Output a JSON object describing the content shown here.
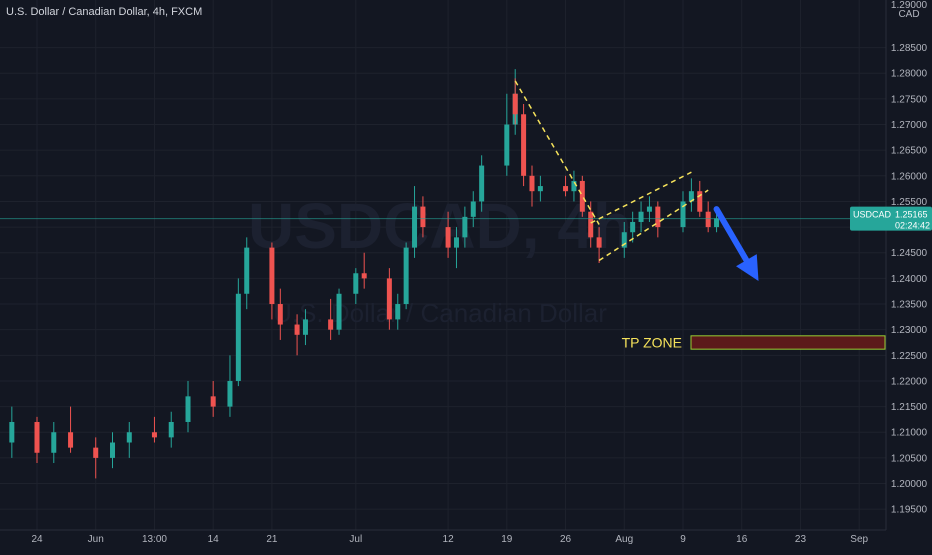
{
  "chart_data": {
    "type": "candlestick",
    "title": "U.S. Dollar / Canadian Dollar, 4h, FXCM",
    "watermark_symbol": "USDCAD, 4h",
    "watermark_name": "U.S. Dollar / Canadian Dollar",
    "currency_label": "CAD",
    "y_axis_top_value": "1.29000",
    "ylim": [
      1.1925,
      1.2935
    ],
    "y_ticks": [
      "1.28500",
      "1.28000",
      "1.27500",
      "1.27000",
      "1.26500",
      "1.26000",
      "1.25500",
      "1.25000",
      "1.24500",
      "1.24000",
      "1.23500",
      "1.23000",
      "1.22500",
      "1.22000",
      "1.21500",
      "1.21000",
      "1.20500",
      "1.20000",
      "1.19500"
    ],
    "x_ticks": [
      "24",
      "Jun",
      "13:00",
      "14",
      "21",
      "Jul",
      "12",
      "19",
      "26",
      "Aug",
      "9",
      "16",
      "23",
      "Sep"
    ],
    "last_price": {
      "symbol": "USDCAD",
      "value": "1.25165",
      "countdown": "02:24:42",
      "price": 1.25165
    },
    "annotation": {
      "label": "TP ZONE",
      "zone_low": 1.2262,
      "zone_high": 1.2288
    },
    "trendlines": [
      {
        "from": [
          "Jul 20",
          1.2785
        ],
        "to": [
          "Jul 30",
          1.2505
        ]
      },
      {
        "from": [
          "Jul 30",
          1.2435
        ],
        "to": [
          "Aug 12",
          1.2572
        ]
      },
      {
        "from": [
          "Jul 29",
          1.2508
        ],
        "to": [
          "Aug 10",
          1.2607
        ]
      },
      {
        "from": [
          "Aug 13",
          1.2535
        ],
        "to": [
          "Aug 18",
          1.2395
        ]
      }
    ],
    "colors": {
      "up": "#26a69a",
      "down": "#ef5350",
      "background": "#131722",
      "trendline": "#f5e25b",
      "arrow": "#2962ff",
      "label_bg": "#26a69a",
      "zone": "#5c1a1a"
    },
    "series": [
      {
        "x": "May 21",
        "o": 1.208,
        "h": 1.215,
        "l": 1.205,
        "c": 1.212
      },
      {
        "x": "May 24",
        "o": 1.212,
        "h": 1.213,
        "l": 1.204,
        "c": 1.206
      },
      {
        "x": "May 26",
        "o": 1.206,
        "h": 1.212,
        "l": 1.204,
        "c": 1.21
      },
      {
        "x": "May 28",
        "o": 1.21,
        "h": 1.215,
        "l": 1.206,
        "c": 1.207
      },
      {
        "x": "May 31",
        "o": 1.207,
        "h": 1.209,
        "l": 1.201,
        "c": 1.205
      },
      {
        "x": "Jun 2",
        "o": 1.205,
        "h": 1.21,
        "l": 1.203,
        "c": 1.208
      },
      {
        "x": "Jun 4",
        "o": 1.208,
        "h": 1.212,
        "l": 1.205,
        "c": 1.21
      },
      {
        "x": "Jun 7",
        "o": 1.21,
        "h": 1.213,
        "l": 1.208,
        "c": 1.209
      },
      {
        "x": "Jun 9",
        "o": 1.209,
        "h": 1.214,
        "l": 1.207,
        "c": 1.212
      },
      {
        "x": "Jun 11",
        "o": 1.212,
        "h": 1.22,
        "l": 1.21,
        "c": 1.217
      },
      {
        "x": "Jun 14",
        "o": 1.217,
        "h": 1.22,
        "l": 1.213,
        "c": 1.215
      },
      {
        "x": "Jun 16",
        "o": 1.215,
        "h": 1.225,
        "l": 1.213,
        "c": 1.22
      },
      {
        "x": "Jun 17",
        "o": 1.22,
        "h": 1.24,
        "l": 1.219,
        "c": 1.237
      },
      {
        "x": "Jun 18",
        "o": 1.237,
        "h": 1.248,
        "l": 1.234,
        "c": 1.246
      },
      {
        "x": "Jun 21",
        "o": 1.246,
        "h": 1.247,
        "l": 1.232,
        "c": 1.235
      },
      {
        "x": "Jun 22",
        "o": 1.235,
        "h": 1.238,
        "l": 1.228,
        "c": 1.231
      },
      {
        "x": "Jun 24",
        "o": 1.231,
        "h": 1.233,
        "l": 1.225,
        "c": 1.229
      },
      {
        "x": "Jun 25",
        "o": 1.229,
        "h": 1.234,
        "l": 1.227,
        "c": 1.232
      },
      {
        "x": "Jun 28",
        "o": 1.232,
        "h": 1.236,
        "l": 1.228,
        "c": 1.23
      },
      {
        "x": "Jun 29",
        "o": 1.23,
        "h": 1.238,
        "l": 1.229,
        "c": 1.237
      },
      {
        "x": "Jul 1",
        "o": 1.237,
        "h": 1.242,
        "l": 1.235,
        "c": 1.241
      },
      {
        "x": "Jul 2",
        "o": 1.241,
        "h": 1.245,
        "l": 1.238,
        "c": 1.24
      },
      {
        "x": "Jul 5",
        "o": 1.24,
        "h": 1.242,
        "l": 1.23,
        "c": 1.232
      },
      {
        "x": "Jul 6",
        "o": 1.232,
        "h": 1.237,
        "l": 1.23,
        "c": 1.235
      },
      {
        "x": "Jul 7",
        "o": 1.235,
        "h": 1.247,
        "l": 1.234,
        "c": 1.246
      },
      {
        "x": "Jul 8",
        "o": 1.246,
        "h": 1.258,
        "l": 1.244,
        "c": 1.254
      },
      {
        "x": "Jul 9",
        "o": 1.254,
        "h": 1.256,
        "l": 1.248,
        "c": 1.25
      },
      {
        "x": "Jul 12",
        "o": 1.25,
        "h": 1.253,
        "l": 1.244,
        "c": 1.246
      },
      {
        "x": "Jul 13",
        "o": 1.246,
        "h": 1.25,
        "l": 1.242,
        "c": 1.248
      },
      {
        "x": "Jul 14",
        "o": 1.248,
        "h": 1.254,
        "l": 1.246,
        "c": 1.252
      },
      {
        "x": "Jul 15",
        "o": 1.252,
        "h": 1.257,
        "l": 1.25,
        "c": 1.255
      },
      {
        "x": "Jul 16",
        "o": 1.255,
        "h": 1.264,
        "l": 1.253,
        "c": 1.262
      },
      {
        "x": "Jul 19",
        "o": 1.262,
        "h": 1.276,
        "l": 1.26,
        "c": 1.27
      },
      {
        "x": "Jul 20",
        "o": 1.27,
        "h": 1.2808,
        "l": 1.268,
        "c": 1.276
      },
      {
        "x": "Jul 20",
        "o": 1.276,
        "h": 1.279,
        "l": 1.27,
        "c": 1.272
      },
      {
        "x": "Jul 21",
        "o": 1.272,
        "h": 1.274,
        "l": 1.258,
        "c": 1.26
      },
      {
        "x": "Jul 22",
        "o": 1.26,
        "h": 1.262,
        "l": 1.254,
        "c": 1.257
      },
      {
        "x": "Jul 23",
        "o": 1.257,
        "h": 1.26,
        "l": 1.255,
        "c": 1.258
      },
      {
        "x": "Jul 26",
        "o": 1.258,
        "h": 1.26,
        "l": 1.256,
        "c": 1.257
      },
      {
        "x": "Jul 27",
        "o": 1.257,
        "h": 1.261,
        "l": 1.255,
        "c": 1.259
      },
      {
        "x": "Jul 28",
        "o": 1.259,
        "h": 1.26,
        "l": 1.252,
        "c": 1.253
      },
      {
        "x": "Jul 29",
        "o": 1.253,
        "h": 1.255,
        "l": 1.246,
        "c": 1.248
      },
      {
        "x": "Jul 30",
        "o": 1.248,
        "h": 1.25,
        "l": 1.243,
        "c": 1.246
      },
      {
        "x": "Aug 2",
        "o": 1.246,
        "h": 1.251,
        "l": 1.244,
        "c": 1.249
      },
      {
        "x": "Aug 3",
        "o": 1.249,
        "h": 1.253,
        "l": 1.247,
        "c": 1.251
      },
      {
        "x": "Aug 4",
        "o": 1.251,
        "h": 1.255,
        "l": 1.249,
        "c": 1.253
      },
      {
        "x": "Aug 5",
        "o": 1.253,
        "h": 1.256,
        "l": 1.251,
        "c": 1.254
      },
      {
        "x": "Aug 6",
        "o": 1.254,
        "h": 1.255,
        "l": 1.248,
        "c": 1.25
      },
      {
        "x": "Aug 9",
        "o": 1.25,
        "h": 1.257,
        "l": 1.249,
        "c": 1.255
      },
      {
        "x": "Aug 10",
        "o": 1.255,
        "h": 1.2595,
        "l": 1.253,
        "c": 1.257
      },
      {
        "x": "Aug 11",
        "o": 1.257,
        "h": 1.259,
        "l": 1.252,
        "c": 1.253
      },
      {
        "x": "Aug 12",
        "o": 1.253,
        "h": 1.255,
        "l": 1.249,
        "c": 1.25
      },
      {
        "x": "Aug 13",
        "o": 1.25,
        "h": 1.253,
        "l": 1.249,
        "c": 1.2517
      }
    ]
  }
}
